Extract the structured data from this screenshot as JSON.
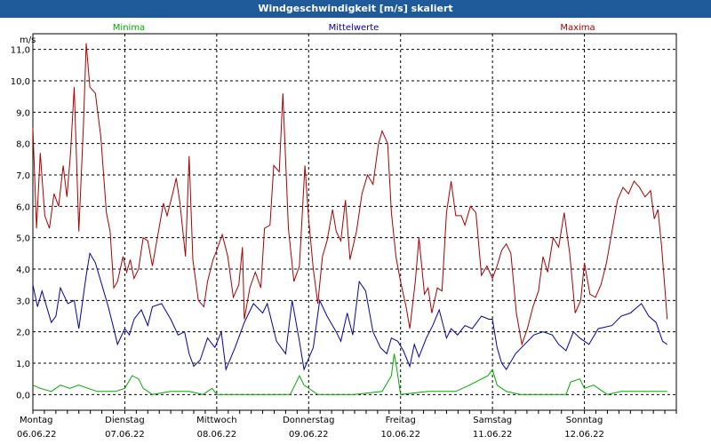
{
  "chart_data": {
    "type": "line",
    "title": "Windgeschwindigkeit [m/s] skaliert",
    "ylabel": "m/s",
    "ylim": [
      -0.5,
      11.5
    ],
    "yticks": [
      "0,0",
      "1,0",
      "2,0",
      "3,0",
      "4,0",
      "5,0",
      "6,0",
      "7,0",
      "8,0",
      "9,0",
      "10,0",
      "11,0"
    ],
    "ytick_values": [
      0,
      1,
      2,
      3,
      4,
      5,
      6,
      7,
      8,
      9,
      10,
      11
    ],
    "xlim": [
      0,
      7.0
    ],
    "x_labels": [
      {
        "day": "Montag",
        "date": "06.06.22",
        "x": 0
      },
      {
        "day": "Dienstag",
        "date": "07.06.22",
        "x": 1
      },
      {
        "day": "Mittwoch",
        "date": "08.06.22",
        "x": 2
      },
      {
        "day": "Donnerstag",
        "date": "09.06.22",
        "x": 3
      },
      {
        "day": "Freitag",
        "date": "10.06.22",
        "x": 4
      },
      {
        "day": "Samstag",
        "date": "11.06.22",
        "x": 5
      },
      {
        "day": "Sonntag",
        "date": "12.06.22",
        "x": 6
      }
    ],
    "grid": true,
    "series": [
      {
        "name": "Minima",
        "color": "#00aa00",
        "points": [
          [
            0,
            0.3
          ],
          [
            0.08,
            0.2
          ],
          [
            0.2,
            0.1
          ],
          [
            0.3,
            0.3
          ],
          [
            0.4,
            0.2
          ],
          [
            0.5,
            0.3
          ],
          [
            0.6,
            0.2
          ],
          [
            0.7,
            0.1
          ],
          [
            0.8,
            0.1
          ],
          [
            0.9,
            0.1
          ],
          [
            1.0,
            0.2
          ],
          [
            1.08,
            0.6
          ],
          [
            1.15,
            0.5
          ],
          [
            1.2,
            0.2
          ],
          [
            1.3,
            0.0
          ],
          [
            1.5,
            0.1
          ],
          [
            1.7,
            0.1
          ],
          [
            1.85,
            0.0
          ],
          [
            1.95,
            0.2
          ],
          [
            2.0,
            0.0
          ],
          [
            2.2,
            0.0
          ],
          [
            2.5,
            0.0
          ],
          [
            2.8,
            0.0
          ],
          [
            2.9,
            0.6
          ],
          [
            2.95,
            0.3
          ],
          [
            3.1,
            0.0
          ],
          [
            3.5,
            0.0
          ],
          [
            3.8,
            0.1
          ],
          [
            3.9,
            0.6
          ],
          [
            3.93,
            1.3
          ],
          [
            3.96,
            0.8
          ],
          [
            4.0,
            0.0
          ],
          [
            4.3,
            0.1
          ],
          [
            4.6,
            0.1
          ],
          [
            4.75,
            0.3
          ],
          [
            4.95,
            0.6
          ],
          [
            5.0,
            0.8
          ],
          [
            5.05,
            0.3
          ],
          [
            5.15,
            0.1
          ],
          [
            5.3,
            0.0
          ],
          [
            5.8,
            0.0
          ],
          [
            5.85,
            0.4
          ],
          [
            5.95,
            0.5
          ],
          [
            6.0,
            0.2
          ],
          [
            6.1,
            0.3
          ],
          [
            6.25,
            0.0
          ],
          [
            6.4,
            0.1
          ],
          [
            6.8,
            0.1
          ],
          [
            6.9,
            0.1
          ]
        ]
      },
      {
        "name": "Mittelwerte",
        "color": "#0000aa",
        "points": [
          [
            0,
            3.5
          ],
          [
            0.05,
            2.8
          ],
          [
            0.1,
            3.3
          ],
          [
            0.2,
            2.3
          ],
          [
            0.25,
            2.5
          ],
          [
            0.3,
            3.4
          ],
          [
            0.38,
            2.9
          ],
          [
            0.45,
            3.0
          ],
          [
            0.5,
            2.1
          ],
          [
            0.58,
            3.8
          ],
          [
            0.62,
            4.5
          ],
          [
            0.68,
            4.2
          ],
          [
            0.75,
            3.5
          ],
          [
            0.82,
            2.8
          ],
          [
            0.88,
            2.1
          ],
          [
            0.92,
            1.6
          ],
          [
            1.0,
            2.1
          ],
          [
            1.05,
            1.9
          ],
          [
            1.1,
            2.4
          ],
          [
            1.18,
            2.7
          ],
          [
            1.25,
            2.2
          ],
          [
            1.3,
            2.8
          ],
          [
            1.4,
            2.9
          ],
          [
            1.5,
            2.4
          ],
          [
            1.58,
            1.9
          ],
          [
            1.65,
            2.0
          ],
          [
            1.7,
            1.3
          ],
          [
            1.75,
            0.9
          ],
          [
            1.82,
            1.1
          ],
          [
            1.9,
            1.8
          ],
          [
            1.98,
            1.5
          ],
          [
            2.05,
            2.0
          ],
          [
            2.1,
            0.8
          ],
          [
            2.2,
            1.5
          ],
          [
            2.3,
            2.3
          ],
          [
            2.4,
            2.9
          ],
          [
            2.5,
            2.6
          ],
          [
            2.55,
            2.9
          ],
          [
            2.65,
            1.7
          ],
          [
            2.75,
            1.3
          ],
          [
            2.82,
            3.0
          ],
          [
            2.9,
            1.7
          ],
          [
            2.95,
            0.8
          ],
          [
            3.05,
            1.5
          ],
          [
            3.12,
            3.0
          ],
          [
            3.2,
            2.5
          ],
          [
            3.3,
            2.0
          ],
          [
            3.35,
            1.7
          ],
          [
            3.42,
            2.6
          ],
          [
            3.48,
            1.9
          ],
          [
            3.55,
            3.6
          ],
          [
            3.62,
            3.3
          ],
          [
            3.7,
            2.0
          ],
          [
            3.78,
            1.5
          ],
          [
            3.85,
            1.3
          ],
          [
            3.9,
            1.8
          ],
          [
            3.97,
            1.7
          ],
          [
            4.03,
            1.4
          ],
          [
            4.1,
            0.9
          ],
          [
            4.15,
            1.6
          ],
          [
            4.2,
            1.2
          ],
          [
            4.28,
            1.8
          ],
          [
            4.35,
            2.2
          ],
          [
            4.42,
            2.7
          ],
          [
            4.5,
            1.8
          ],
          [
            4.55,
            2.1
          ],
          [
            4.62,
            1.9
          ],
          [
            4.7,
            2.2
          ],
          [
            4.78,
            2.1
          ],
          [
            4.88,
            2.5
          ],
          [
            4.96,
            2.4
          ],
          [
            5.0,
            2.4
          ],
          [
            5.05,
            1.5
          ],
          [
            5.1,
            1.0
          ],
          [
            5.15,
            0.8
          ],
          [
            5.25,
            1.3
          ],
          [
            5.35,
            1.6
          ],
          [
            5.45,
            1.9
          ],
          [
            5.55,
            2.0
          ],
          [
            5.65,
            1.9
          ],
          [
            5.72,
            1.6
          ],
          [
            5.8,
            1.4
          ],
          [
            5.88,
            2.0
          ],
          [
            5.95,
            1.8
          ],
          [
            6.05,
            1.6
          ],
          [
            6.15,
            2.1
          ],
          [
            6.3,
            2.2
          ],
          [
            6.4,
            2.5
          ],
          [
            6.5,
            2.6
          ],
          [
            6.58,
            2.8
          ],
          [
            6.62,
            2.9
          ],
          [
            6.7,
            2.5
          ],
          [
            6.78,
            2.3
          ],
          [
            6.85,
            1.7
          ],
          [
            6.9,
            1.6
          ]
        ]
      },
      {
        "name": "Maxima",
        "color": "#aa0000",
        "points": [
          [
            0,
            8.5
          ],
          [
            0.04,
            5.3
          ],
          [
            0.08,
            7.7
          ],
          [
            0.13,
            5.7
          ],
          [
            0.18,
            5.3
          ],
          [
            0.23,
            6.4
          ],
          [
            0.28,
            6.0
          ],
          [
            0.33,
            7.3
          ],
          [
            0.37,
            6.3
          ],
          [
            0.41,
            7.7
          ],
          [
            0.45,
            9.8
          ],
          [
            0.5,
            5.2
          ],
          [
            0.55,
            8.6
          ],
          [
            0.58,
            11.2
          ],
          [
            0.62,
            9.8
          ],
          [
            0.68,
            9.6
          ],
          [
            0.74,
            8.2
          ],
          [
            0.8,
            5.8
          ],
          [
            0.84,
            5.2
          ],
          [
            0.88,
            3.4
          ],
          [
            0.92,
            3.6
          ],
          [
            0.98,
            4.4
          ],
          [
            1.02,
            3.9
          ],
          [
            1.06,
            4.3
          ],
          [
            1.1,
            3.7
          ],
          [
            1.15,
            4.0
          ],
          [
            1.2,
            5.0
          ],
          [
            1.25,
            4.9
          ],
          [
            1.3,
            4.1
          ],
          [
            1.36,
            5.1
          ],
          [
            1.42,
            6.1
          ],
          [
            1.46,
            5.7
          ],
          [
            1.52,
            6.4
          ],
          [
            1.56,
            6.9
          ],
          [
            1.6,
            6.1
          ],
          [
            1.66,
            4.4
          ],
          [
            1.7,
            7.6
          ],
          [
            1.74,
            4.3
          ],
          [
            1.8,
            3.0
          ],
          [
            1.86,
            2.8
          ],
          [
            1.9,
            3.6
          ],
          [
            1.96,
            4.3
          ],
          [
            2.0,
            4.6
          ],
          [
            2.06,
            5.1
          ],
          [
            2.12,
            4.4
          ],
          [
            2.18,
            3.1
          ],
          [
            2.24,
            3.5
          ],
          [
            2.28,
            4.7
          ],
          [
            2.3,
            2.4
          ],
          [
            2.36,
            3.4
          ],
          [
            2.42,
            3.9
          ],
          [
            2.48,
            3.4
          ],
          [
            2.52,
            5.3
          ],
          [
            2.58,
            5.4
          ],
          [
            2.62,
            7.3
          ],
          [
            2.68,
            7.1
          ],
          [
            2.72,
            9.6
          ],
          [
            2.78,
            5.3
          ],
          [
            2.84,
            3.6
          ],
          [
            2.9,
            4.1
          ],
          [
            2.96,
            7.3
          ],
          [
            3.0,
            5.6
          ],
          [
            3.05,
            4.0
          ],
          [
            3.1,
            2.9
          ],
          [
            3.15,
            4.4
          ],
          [
            3.2,
            4.9
          ],
          [
            3.26,
            5.9
          ],
          [
            3.3,
            5.2
          ],
          [
            3.35,
            4.9
          ],
          [
            3.4,
            6.2
          ],
          [
            3.45,
            4.3
          ],
          [
            3.52,
            5.2
          ],
          [
            3.58,
            6.4
          ],
          [
            3.64,
            7.0
          ],
          [
            3.7,
            6.7
          ],
          [
            3.76,
            8.0
          ],
          [
            3.8,
            8.4
          ],
          [
            3.86,
            8.0
          ],
          [
            3.9,
            5.8
          ],
          [
            3.95,
            4.4
          ],
          [
            4.0,
            3.6
          ],
          [
            4.06,
            2.8
          ],
          [
            4.1,
            2.1
          ],
          [
            4.16,
            3.6
          ],
          [
            4.2,
            5.0
          ],
          [
            4.26,
            3.2
          ],
          [
            4.3,
            3.4
          ],
          [
            4.34,
            2.6
          ],
          [
            4.4,
            3.4
          ],
          [
            4.45,
            3.3
          ],
          [
            4.5,
            5.8
          ],
          [
            4.55,
            6.8
          ],
          [
            4.6,
            5.7
          ],
          [
            4.66,
            5.7
          ],
          [
            4.7,
            5.4
          ],
          [
            4.76,
            6.0
          ],
          [
            4.82,
            5.8
          ],
          [
            4.88,
            3.8
          ],
          [
            4.94,
            4.1
          ],
          [
            5.0,
            3.7
          ],
          [
            5.05,
            4.1
          ],
          [
            5.1,
            4.6
          ],
          [
            5.15,
            4.8
          ],
          [
            5.2,
            4.5
          ],
          [
            5.26,
            2.6
          ],
          [
            5.32,
            1.6
          ],
          [
            5.38,
            2.1
          ],
          [
            5.44,
            2.8
          ],
          [
            5.5,
            3.3
          ],
          [
            5.55,
            4.4
          ],
          [
            5.6,
            3.9
          ],
          [
            5.66,
            5.0
          ],
          [
            5.72,
            4.7
          ],
          [
            5.78,
            5.8
          ],
          [
            5.84,
            4.5
          ],
          [
            5.9,
            2.6
          ],
          [
            5.96,
            3.0
          ],
          [
            6.0,
            4.2
          ],
          [
            6.06,
            3.2
          ],
          [
            6.12,
            3.1
          ],
          [
            6.18,
            3.5
          ],
          [
            6.24,
            4.2
          ],
          [
            6.3,
            5.2
          ],
          [
            6.36,
            6.2
          ],
          [
            6.42,
            6.6
          ],
          [
            6.48,
            6.4
          ],
          [
            6.54,
            6.8
          ],
          [
            6.6,
            6.6
          ],
          [
            6.66,
            6.3
          ],
          [
            6.72,
            6.5
          ],
          [
            6.76,
            5.6
          ],
          [
            6.8,
            5.9
          ],
          [
            6.84,
            4.7
          ],
          [
            6.88,
            3.2
          ],
          [
            6.9,
            2.4
          ]
        ]
      }
    ]
  }
}
